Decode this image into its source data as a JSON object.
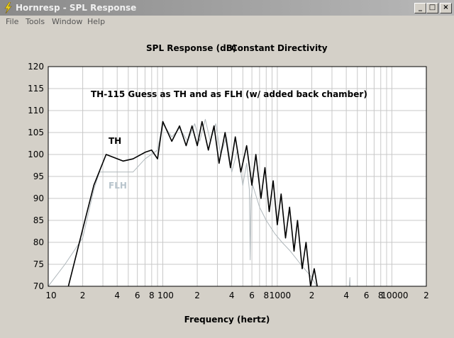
{
  "window": {
    "title": "Hornresp - SPL Response"
  },
  "menu": [
    "File",
    "Tools",
    "Window",
    "Help"
  ],
  "chart_data": {
    "type": "line",
    "title": "SPL Response (dB)",
    "subtitle": "Constant Directivity",
    "xlabel": "Frequency (hertz)",
    "annotations": [
      {
        "text": "TH-115 Guess as TH and as FLH (w/ added back chamber)",
        "color": "#000000"
      },
      {
        "text": "TH",
        "color": "#000000"
      },
      {
        "text": "FLH",
        "color": "#b8c4cc"
      }
    ],
    "xscale": "log",
    "xlim": [
      10,
      20000
    ],
    "xticks": [
      10,
      {
        "value": 20,
        "label": "2"
      },
      {
        "value": 40,
        "label": "4"
      },
      {
        "value": 60,
        "label": "6"
      },
      {
        "value": 80,
        "label": "8"
      },
      100,
      {
        "value": 200,
        "label": "2"
      },
      {
        "value": 400,
        "label": "4"
      },
      {
        "value": 600,
        "label": "6"
      },
      {
        "value": 800,
        "label": "8"
      },
      1000,
      {
        "value": 2000,
        "label": "2"
      },
      {
        "value": 4000,
        "label": "4"
      },
      {
        "value": 6000,
        "label": "6"
      },
      {
        "value": 8000,
        "label": "8"
      },
      10000,
      {
        "value": 20000,
        "label": "2"
      }
    ],
    "xminor": [
      30,
      50,
      70,
      90,
      300,
      500,
      700,
      900,
      3000,
      5000,
      7000,
      9000
    ],
    "ylim": [
      70,
      120
    ],
    "yticks": [
      70,
      75,
      80,
      85,
      90,
      95,
      100,
      105,
      110,
      115,
      120
    ],
    "grid": true,
    "series": [
      {
        "name": "FLH",
        "color": "#b0b8bc",
        "x": [
          10,
          14,
          20,
          25,
          28,
          40,
          55,
          70,
          90,
          100,
          120,
          140,
          165,
          190,
          210,
          235,
          260,
          290,
          320,
          360,
          400,
          450,
          500,
          540,
          570,
          580,
          590,
          610,
          700,
          800,
          950,
          1100,
          1300,
          1600,
          2000,
          2200,
          3000,
          4200,
          4300,
          4400
        ],
        "values": [
          70,
          75,
          81,
          92,
          96,
          96,
          96,
          99,
          101,
          107,
          104,
          106,
          103,
          107,
          103,
          108,
          103,
          107,
          100,
          104,
          96,
          101,
          93,
          98,
          92,
          76,
          90,
          93,
          88,
          85,
          82,
          80,
          78,
          75,
          72,
          70,
          62,
          68,
          72,
          62
        ]
      },
      {
        "name": "TH",
        "color": "#000000",
        "x": [
          15,
          20,
          25,
          32,
          45,
          55,
          70,
          80,
          90,
          100,
          120,
          140,
          160,
          180,
          200,
          220,
          250,
          280,
          310,
          350,
          390,
          430,
          480,
          540,
          600,
          650,
          720,
          780,
          850,
          920,
          1000,
          1080,
          1180,
          1280,
          1400,
          1500,
          1650,
          1780,
          1950,
          2100,
          2300
        ],
        "values": [
          70,
          83,
          93,
          100,
          98.5,
          99,
          100.5,
          101,
          99,
          107.5,
          103,
          106.5,
          102,
          106.5,
          102,
          107.5,
          101,
          106.5,
          98,
          105,
          97,
          104,
          96,
          102,
          93,
          100,
          90,
          97,
          87,
          94,
          84,
          91,
          81,
          88,
          78,
          85,
          74,
          80,
          70,
          74,
          68
        ]
      }
    ]
  }
}
